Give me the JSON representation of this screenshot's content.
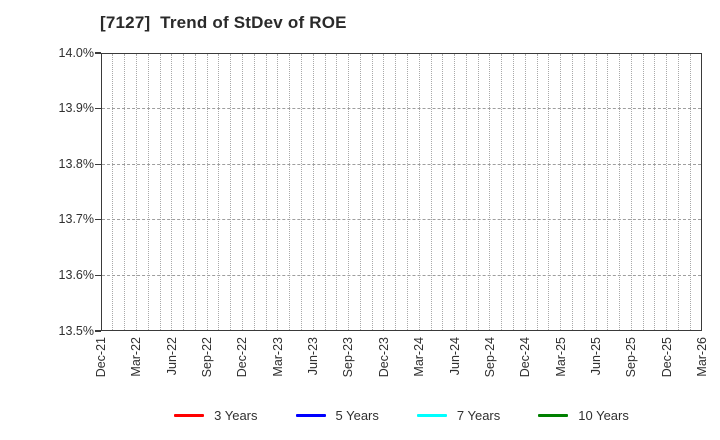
{
  "chart_data": {
    "type": "line",
    "title": "[7127]  Trend of StDev of ROE",
    "title_color": "#2a2a2a",
    "x_tick_labels": [
      "Dec-21",
      "Mar-22",
      "Jun-22",
      "Sep-22",
      "Dec-22",
      "Mar-23",
      "Jun-23",
      "Sep-23",
      "Dec-23",
      "Mar-24",
      "Jun-24",
      "Sep-24",
      "Dec-24",
      "Mar-25",
      "Jun-25",
      "Sep-25",
      "Dec-25",
      "Mar-26"
    ],
    "y_tick_labels": [
      "14.0%",
      "13.9%",
      "13.8%",
      "13.7%",
      "13.6%",
      "13.5%"
    ],
    "ylim": [
      13.5,
      14.0
    ],
    "y_unit": "%",
    "series": [
      {
        "name": "3 Years",
        "color": "#ff0000",
        "values": []
      },
      {
        "name": "5 Years",
        "color": "#0000ff",
        "values": []
      },
      {
        "name": "7 Years",
        "color": "#00ffff",
        "values": []
      },
      {
        "name": "10 Years",
        "color": "#008000",
        "values": []
      }
    ],
    "grid": {
      "vertical_style": "dotted",
      "horizontal_style": "dashed",
      "minor_intervals_per_label": 3
    },
    "legend_position": "bottom",
    "plot_empty": true
  }
}
